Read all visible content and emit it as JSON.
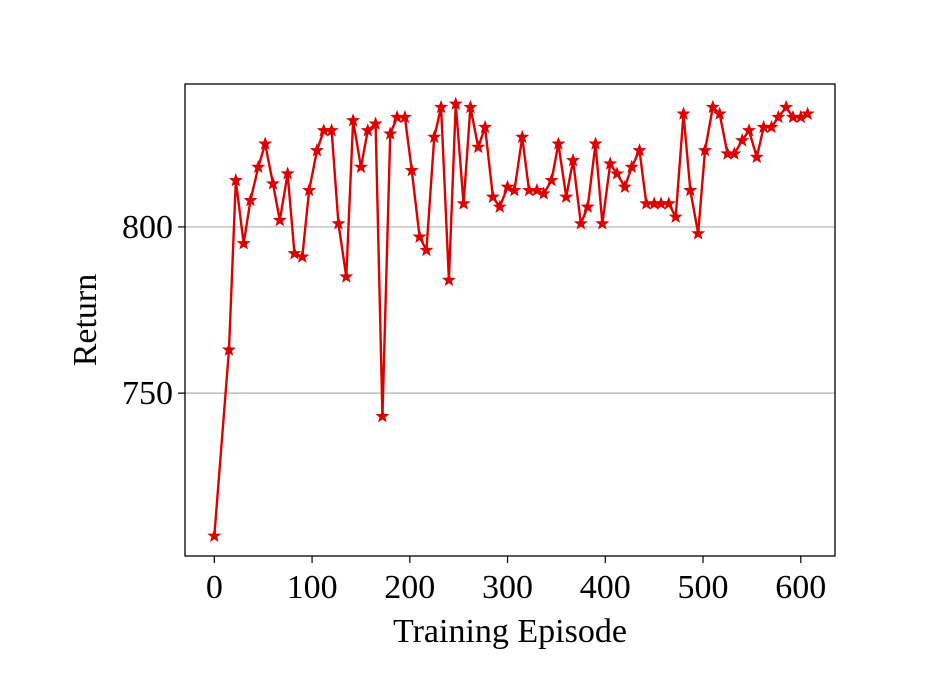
{
  "chart_data": {
    "type": "line",
    "title": "",
    "xlabel": "Training Episode",
    "ylabel": "Return",
    "xlim": [
      -30,
      635
    ],
    "ylim": [
      701,
      843
    ],
    "xticks": [
      0,
      100,
      200,
      300,
      400,
      500,
      600
    ],
    "xtick_labels": [
      "0",
      "100",
      "200",
      "300",
      "400",
      "500",
      "600"
    ],
    "yticks": [
      750,
      800
    ],
    "ytick_labels": [
      "750",
      "800"
    ],
    "grid": "horizontal",
    "legend": "none",
    "series": [
      {
        "color": "#dd0000",
        "marker": "star",
        "x": [
          0,
          15,
          22,
          30,
          37,
          45,
          52,
          60,
          67,
          75,
          82,
          90,
          97,
          105,
          112,
          120,
          127,
          135,
          142,
          150,
          157,
          165,
          172,
          180,
          187,
          195,
          202,
          210,
          217,
          225,
          232,
          240,
          247,
          255,
          262,
          270,
          277,
          285,
          292,
          300,
          307,
          315,
          322,
          330,
          337,
          345,
          352,
          360,
          367,
          375,
          382,
          390,
          397,
          405,
          412,
          420,
          427,
          435,
          442,
          450,
          457,
          465,
          472,
          480,
          487,
          495,
          502,
          510,
          517,
          525,
          532,
          540,
          547,
          555,
          562,
          570,
          577,
          585,
          592,
          600,
          607
        ],
        "values": [
          707,
          763,
          814,
          795,
          808,
          818,
          825,
          813,
          802,
          816,
          792,
          791,
          811,
          823,
          829,
          829,
          801,
          785,
          832,
          818,
          829,
          831,
          743,
          828,
          833,
          833,
          817,
          797,
          793,
          827,
          836,
          784,
          837,
          807,
          836,
          824,
          830,
          809,
          806,
          812,
          811,
          827,
          811,
          811,
          810,
          814,
          825,
          809,
          820,
          801,
          806,
          825,
          801,
          819,
          816,
          812,
          818,
          823,
          807,
          807,
          807,
          807,
          803,
          834,
          811,
          798,
          823,
          836,
          834,
          822,
          822,
          826,
          829,
          821,
          830,
          830,
          833,
          836,
          833,
          833,
          834
        ]
      }
    ]
  }
}
